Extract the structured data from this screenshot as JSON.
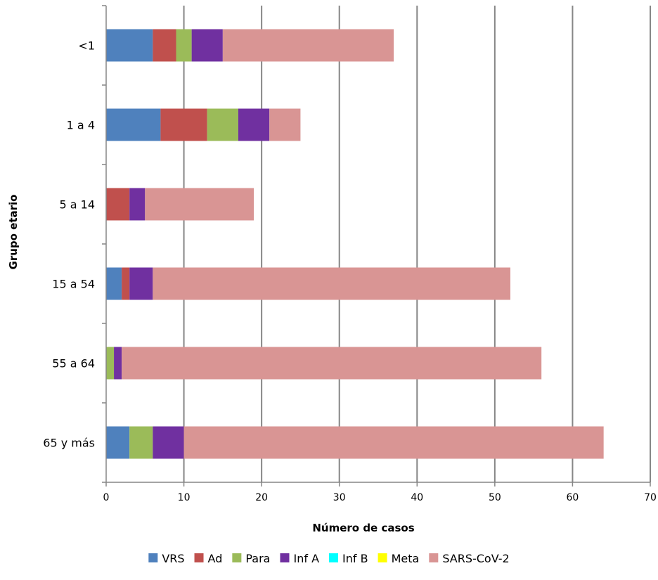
{
  "chart_data": {
    "type": "bar",
    "orientation": "horizontal",
    "stacked": true,
    "title": "",
    "xlabel": "Número de casos",
    "ylabel": "Grupo etario",
    "xlim": [
      0,
      70
    ],
    "xticks": [
      0,
      10,
      20,
      30,
      40,
      50,
      60,
      70
    ],
    "grid": "vertical",
    "legend_position": "bottom",
    "categories": [
      "<1",
      "1 a 4",
      "5 a 14",
      "15 a 54",
      "55 a 64",
      "65 y más"
    ],
    "series": [
      {
        "name": "VRS",
        "color": "#4f81bd",
        "values": [
          6,
          7,
          0,
          2,
          0,
          3
        ]
      },
      {
        "name": "Ad",
        "color": "#c0504d",
        "values": [
          3,
          6,
          3,
          1,
          0,
          0
        ]
      },
      {
        "name": "Para",
        "color": "#9bbb59",
        "values": [
          2,
          4,
          0,
          0,
          1,
          3
        ]
      },
      {
        "name": "Inf A",
        "color": "#7030a0",
        "values": [
          4,
          4,
          2,
          3,
          1,
          4
        ]
      },
      {
        "name": "Inf B",
        "color": "#00ffff",
        "values": [
          0,
          0,
          0,
          0,
          0,
          0
        ]
      },
      {
        "name": "Meta",
        "color": "#ffff00",
        "values": [
          0,
          0,
          0,
          0,
          0,
          0
        ]
      },
      {
        "name": "SARS-CoV-2",
        "color": "#d99594",
        "values": [
          22,
          4,
          14,
          46,
          54,
          54
        ]
      }
    ]
  }
}
